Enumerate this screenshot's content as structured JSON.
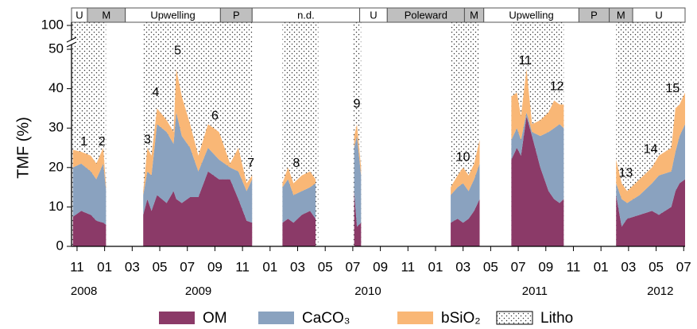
{
  "chart_data": {
    "type": "stacked_area",
    "y_label": "TMF (%)",
    "xlim": [
      -0.4,
      44.1
    ],
    "xticks": [
      {
        "value": 0,
        "label": "11"
      },
      {
        "value": 2,
        "label": "01"
      },
      {
        "value": 4,
        "label": "03"
      },
      {
        "value": 6,
        "label": "05"
      },
      {
        "value": 8,
        "label": "07"
      },
      {
        "value": 10,
        "label": "09"
      },
      {
        "value": 12,
        "label": "11"
      },
      {
        "value": 14,
        "label": "01"
      },
      {
        "value": 16,
        "label": "03"
      },
      {
        "value": 18,
        "label": "05"
      },
      {
        "value": 20,
        "label": "07"
      },
      {
        "value": 22,
        "label": "09"
      },
      {
        "value": 24,
        "label": "11"
      },
      {
        "value": 26,
        "label": "01"
      },
      {
        "value": 28,
        "label": "03"
      },
      {
        "value": 30,
        "label": "05"
      },
      {
        "value": 32,
        "label": "07"
      },
      {
        "value": 34,
        "label": "09"
      },
      {
        "value": 36,
        "label": "11"
      },
      {
        "value": 38,
        "label": "01"
      },
      {
        "value": 40,
        "label": "03"
      },
      {
        "value": 42,
        "label": "05"
      },
      {
        "value": 44,
        "label": "07"
      }
    ],
    "year_labels": [
      {
        "value": 0.5,
        "label": "2008"
      },
      {
        "value": 8.8,
        "label": "2009"
      },
      {
        "value": 21.1,
        "label": "2010"
      },
      {
        "value": 33.2,
        "label": "2011"
      },
      {
        "value": 42.3,
        "label": "2012"
      }
    ],
    "ylim": [
      0,
      100
    ],
    "yticks": [
      0,
      10,
      20,
      30,
      40,
      50,
      100
    ],
    "axis_break": [
      50,
      100
    ],
    "season_band": [
      {
        "label": "U",
        "start": -0.4,
        "end": 0.75,
        "color": "#ffffff"
      },
      {
        "label": "M",
        "start": 0.75,
        "end": 3.5,
        "color": "#bfbfbf"
      },
      {
        "label": "Upwelling",
        "start": 3.5,
        "end": 10.4,
        "color": "#ffffff"
      },
      {
        "label": "P",
        "start": 10.4,
        "end": 12.7,
        "color": "#bfbfbf"
      },
      {
        "label": "n.d.",
        "start": 12.7,
        "end": 20.5,
        "color": "#ffffff"
      },
      {
        "label": "U",
        "start": 20.5,
        "end": 22.5,
        "color": "#ffffff"
      },
      {
        "label": "Poleward",
        "start": 22.5,
        "end": 28.1,
        "color": "#bfbfbf"
      },
      {
        "label": "M",
        "start": 28.1,
        "end": 29.5,
        "color": "#bfbfbf"
      },
      {
        "label": "Upwelling",
        "start": 29.5,
        "end": 36.4,
        "color": "#ffffff"
      },
      {
        "label": "P",
        "start": 36.4,
        "end": 38.6,
        "color": "#bfbfbf"
      },
      {
        "label": "M",
        "start": 38.6,
        "end": 40.3,
        "color": "#bfbfbf"
      },
      {
        "label": "U",
        "start": 40.3,
        "end": 44.1,
        "color": "#ffffff"
      }
    ],
    "litho": {
      "name": "Litho",
      "periods": [
        [
          -0.4,
          2.1
        ],
        [
          4.8,
          12.7
        ],
        [
          14.9,
          17.5
        ],
        [
          20.0,
          20.6
        ],
        [
          27.1,
          29.2
        ],
        [
          31.5,
          35.3
        ],
        [
          39.1,
          44.1
        ]
      ]
    },
    "x": [
      -0.3,
      0.3,
      1.0,
      1.4,
      1.9,
      2.1,
      3.0,
      4.8,
      5.1,
      5.4,
      5.8,
      6.5,
      7.0,
      7.2,
      7.6,
      8.2,
      8.8,
      9.5,
      10.3,
      11.1,
      11.7,
      12.3,
      12.7,
      13.5,
      14.9,
      15.3,
      15.7,
      16.3,
      16.9,
      17.3,
      18.5,
      20.1,
      20.3,
      20.6,
      24.0,
      27.1,
      27.6,
      28.0,
      28.4,
      28.8,
      29.2,
      30.5,
      31.5,
      31.9,
      32.2,
      32.6,
      33.0,
      33.6,
      34.2,
      34.6,
      35.0,
      35.3,
      37.0,
      39.1,
      39.5,
      39.9,
      40.8,
      41.7,
      42.2,
      43.1,
      43.4,
      43.7,
      44.1
    ],
    "series": [
      {
        "name": "OM",
        "color": "#8b3a68",
        "values": [
          7.5,
          9,
          8,
          6.5,
          6,
          5.5,
          null,
          8,
          12,
          9,
          13,
          11,
          14,
          12,
          11,
          12.5,
          12.5,
          19,
          17,
          17,
          12,
          6.5,
          6,
          null,
          6,
          7,
          6,
          8,
          9,
          7,
          null,
          14,
          5,
          6,
          null,
          6,
          7,
          6,
          7,
          9,
          12,
          null,
          22,
          25,
          23,
          33,
          28,
          20,
          14,
          12,
          11,
          12,
          null,
          13,
          5,
          7,
          8,
          9,
          8,
          10,
          14,
          16,
          17
        ]
      },
      {
        "name": "CaCO₃",
        "color": "#8aa2bf",
        "values": [
          12.5,
          12,
          11,
          10.5,
          15,
          9,
          null,
          5,
          7,
          9,
          18,
          18,
          12,
          22,
          17,
          12.5,
          6.5,
          6,
          5,
          3,
          7,
          7.5,
          11,
          null,
          9,
          10,
          7,
          6,
          6,
          9,
          null,
          11,
          23,
          12,
          null,
          7,
          8,
          10,
          7,
          8,
          9,
          null,
          5,
          5,
          4,
          1,
          1,
          8,
          15,
          18,
          20,
          18,
          null,
          3,
          7,
          4,
          5,
          7,
          10,
          9,
          10,
          12,
          14
        ]
      },
      {
        "name": "bSiO₂",
        "color": "#f9b776",
        "values": [
          4.5,
          3,
          4,
          4,
          4,
          1,
          null,
          1,
          6,
          5,
          4,
          3,
          3,
          11,
          10,
          6,
          4,
          6,
          7,
          1,
          6,
          2,
          1,
          null,
          1,
          3,
          3,
          4,
          4,
          1,
          null,
          3,
          3,
          2,
          null,
          2,
          3,
          4,
          4,
          4,
          6,
          null,
          11,
          9,
          6,
          11,
          2,
          4,
          5,
          7,
          5,
          6,
          null,
          6,
          4,
          3,
          4,
          4,
          5,
          6,
          11,
          8,
          8
        ]
      }
    ],
    "annotations": [
      {
        "text": "1",
        "x": 0.5,
        "y": 26.5
      },
      {
        "text": "2",
        "x": 1.8,
        "y": 26.5
      },
      {
        "text": "3",
        "x": 5.1,
        "y": 27
      },
      {
        "text": "4",
        "x": 5.7,
        "y": 39
      },
      {
        "text": "5",
        "x": 7.3,
        "y": 49.5
      },
      {
        "text": "6",
        "x": 10.0,
        "y": 33
      },
      {
        "text": "7",
        "x": 12.6,
        "y": 21
      },
      {
        "text": "8",
        "x": 15.9,
        "y": 21
      },
      {
        "text": "9",
        "x": 20.3,
        "y": 36
      },
      {
        "text": "10",
        "x": 28.0,
        "y": 22.5
      },
      {
        "text": "11",
        "x": 32.5,
        "y": 47
      },
      {
        "text": "12",
        "x": 34.8,
        "y": 40.5
      },
      {
        "text": "13",
        "x": 39.8,
        "y": 18.5
      },
      {
        "text": "14",
        "x": 41.6,
        "y": 24.5
      },
      {
        "text": "15",
        "x": 43.2,
        "y": 40
      }
    ]
  }
}
